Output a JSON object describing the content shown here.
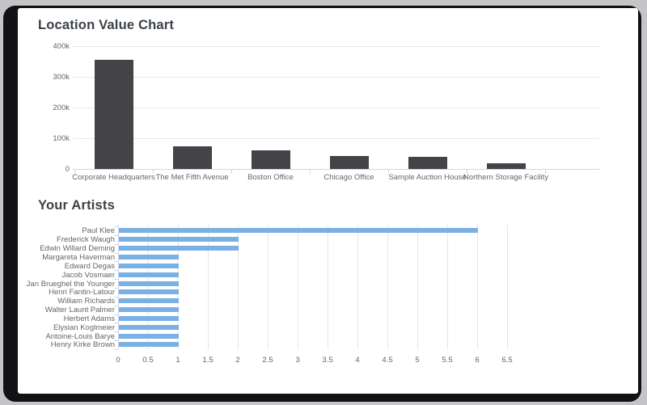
{
  "page": {
    "background_color": "#c5c5c7",
    "frame_color": "#121215",
    "card_color": "#ffffff"
  },
  "chart_data": [
    {
      "id": "location-value-chart",
      "type": "bar",
      "orientation": "vertical",
      "title": "Location Value Chart",
      "bar_color": "#434348",
      "categories": [
        "Corporate Headquarters",
        "The Met Fifth Avenue",
        "Boston Office",
        "Chicago Office",
        "Sample Auction House",
        "Northern Storage Facility"
      ],
      "values": [
        355000,
        75000,
        60000,
        41000,
        40000,
        18000
      ],
      "ylim": [
        0,
        400000
      ],
      "yticks": [
        {
          "value": 0,
          "label": "0"
        },
        {
          "value": 100000,
          "label": "100k"
        },
        {
          "value": 200000,
          "label": "200k"
        },
        {
          "value": 300000,
          "label": "300k"
        },
        {
          "value": 400000,
          "label": "400k"
        }
      ],
      "grid": true,
      "legend": false
    },
    {
      "id": "your-artists-chart",
      "type": "bar",
      "orientation": "horizontal",
      "title": "Your Artists",
      "bar_color": "#7bb0e2",
      "categories": [
        "Paul Klee",
        "Frederick Waugh",
        "Edwin Willard Deming",
        "Margareta Haverman",
        "Edward Degas",
        "Jacob Vosmaer",
        "Jan Brueghel the Younger",
        "Henri Fantin-Latour",
        "William Richards",
        "Walter Launt Palmer",
        "Herbert Adams",
        "Elysian Koglmeier",
        "Antoine-Louis Barye",
        "Henry Kirke Brown"
      ],
      "values": [
        6,
        2,
        2,
        1,
        1,
        1,
        1,
        1,
        1,
        1,
        1,
        1,
        1,
        1
      ],
      "xlim": [
        0,
        6.5
      ],
      "xticks": [
        {
          "value": 0,
          "label": "0"
        },
        {
          "value": 0.5,
          "label": "0.5"
        },
        {
          "value": 1,
          "label": "1"
        },
        {
          "value": 1.5,
          "label": "1.5"
        },
        {
          "value": 2,
          "label": "2"
        },
        {
          "value": 2.5,
          "label": "2.5"
        },
        {
          "value": 3,
          "label": "3"
        },
        {
          "value": 3.5,
          "label": "3.5"
        },
        {
          "value": 4,
          "label": "4"
        },
        {
          "value": 4.5,
          "label": "4.5"
        },
        {
          "value": 5,
          "label": "5"
        },
        {
          "value": 5.5,
          "label": "5.5"
        },
        {
          "value": 6,
          "label": "6"
        },
        {
          "value": 6.5,
          "label": "6.5"
        }
      ],
      "grid": true,
      "legend": false
    }
  ]
}
